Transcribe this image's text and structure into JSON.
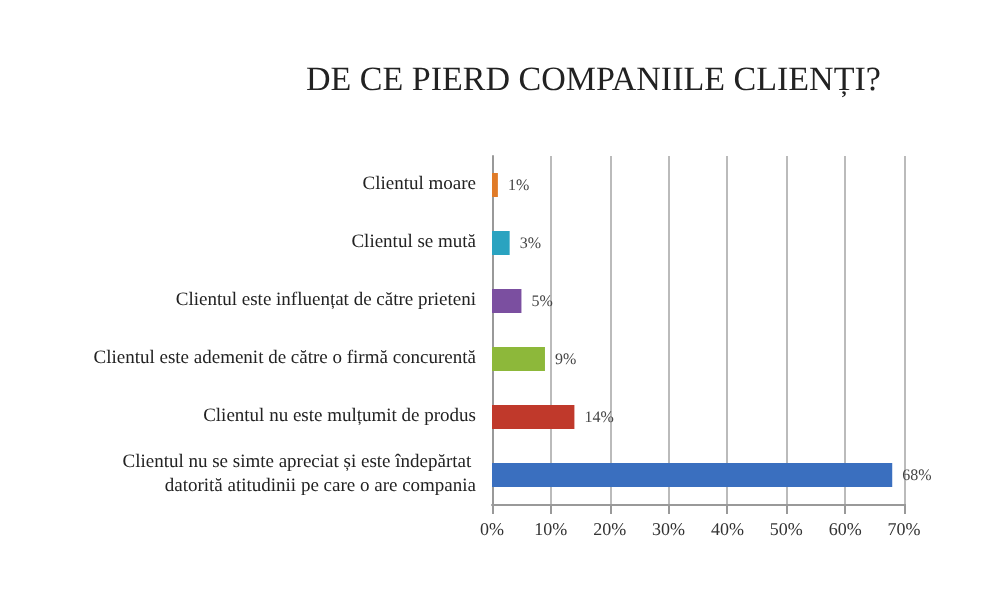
{
  "chart_data": {
    "type": "bar",
    "orientation": "horizontal",
    "title": "DE CE PIERD COMPANIILE CLIENȚI?",
    "categories": [
      "Clientul moare",
      "Clientul se mută",
      "Clientul este influențat de către prieteni",
      "Clientul este ademenit de către o firmă concurentă",
      "Clientul nu este mulțumit de produs",
      "Clientul nu se simte apreciat și este îndepărtat datorită atitudinii pe care o are compania"
    ],
    "values": [
      1,
      3,
      5,
      9,
      14,
      68
    ],
    "value_labels": [
      "1%",
      "3%",
      "5%",
      "9%",
      "14%",
      "68%"
    ],
    "colors": [
      "#e07b28",
      "#2aa3c0",
      "#7b4fa0",
      "#8db83a",
      "#c0392b",
      "#3a6fbf"
    ],
    "xlim": [
      0,
      70
    ],
    "xticks": [
      {
        "value": 0,
        "label": "0%"
      },
      {
        "value": 10,
        "label": "10%"
      },
      {
        "value": 20,
        "label": "20%"
      },
      {
        "value": 30,
        "label": "30%"
      },
      {
        "value": 40,
        "label": "40%"
      },
      {
        "value": 50,
        "label": "50%"
      },
      {
        "value": 60,
        "label": "60%"
      },
      {
        "value": 70,
        "label": "70%"
      }
    ],
    "grid": "x"
  }
}
